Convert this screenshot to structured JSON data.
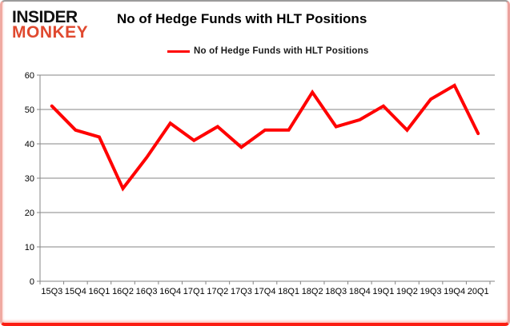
{
  "header": {
    "logo_line1": "INSIDER",
    "logo_line2": "MONKEY",
    "title": "No of Hedge Funds with HLT Positions"
  },
  "legend": {
    "label": "No of Hedge Funds with HLT Positions"
  },
  "colors": {
    "line": "#ff0000",
    "grid": "#868686",
    "axis_text": "#000000",
    "logo_black": "#111111",
    "logo_red": "#e0492f",
    "frame_bottom_red": "#fb1d12"
  },
  "chart_data": {
    "type": "line",
    "title": "No of Hedge Funds with HLT Positions",
    "categories": [
      "15Q3",
      "15Q4",
      "16Q1",
      "16Q2",
      "16Q3",
      "16Q4",
      "17Q1",
      "17Q2",
      "17Q3",
      "17Q4",
      "18Q1",
      "18Q2",
      "18Q3",
      "18Q4",
      "19Q1",
      "19Q2",
      "19Q3",
      "19Q4",
      "20Q1"
    ],
    "series": [
      {
        "name": "No of Hedge Funds with HLT Positions",
        "values": [
          51,
          44,
          42,
          27,
          36,
          46,
          41,
          45,
          39,
          44,
          44,
          55,
          45,
          47,
          51,
          44,
          53,
          57,
          43
        ]
      }
    ],
    "ylim": [
      0,
      60
    ],
    "yticks": [
      0,
      10,
      20,
      30,
      40,
      50,
      60
    ],
    "grid": "horizontal",
    "legend_position": "top"
  }
}
